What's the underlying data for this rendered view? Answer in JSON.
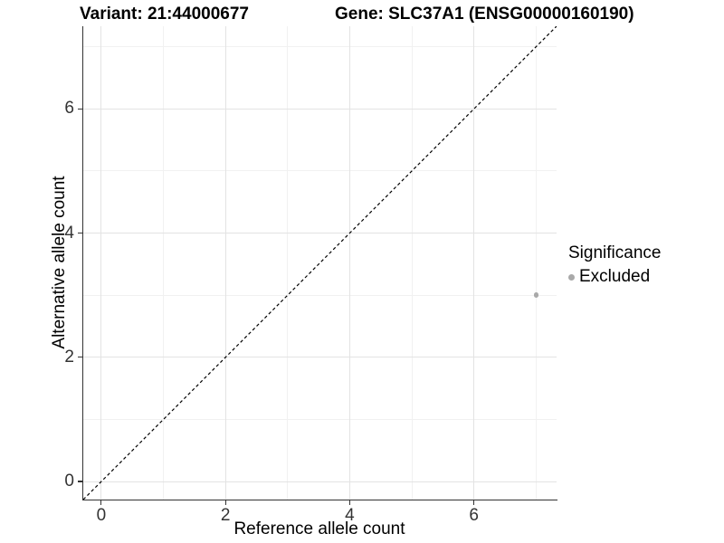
{
  "chart_data": {
    "type": "scatter",
    "title_left": "Variant: 21:44000677",
    "title_right": "Gene: SLC37A1 (ENSG00000160190)",
    "xlabel": "Reference allele count",
    "ylabel": "Alternative allele count",
    "xlim": [
      -0.29,
      7.33
    ],
    "ylim": [
      -0.29,
      7.33
    ],
    "x_major_ticks": [
      0,
      2,
      4,
      6
    ],
    "y_major_ticks": [
      0,
      2,
      4,
      6
    ],
    "x_minor_gridlines": [
      1,
      3,
      5,
      7
    ],
    "y_minor_gridlines": [
      1,
      3,
      5,
      7
    ],
    "grid": "major and minor, light gray on white",
    "identity_line": {
      "slope": 1,
      "intercept": 0,
      "style": "dashed",
      "color": "#000000"
    },
    "series": [
      {
        "name": "Excluded",
        "color": "#a9a9a9",
        "points": [
          {
            "x": 7,
            "y": 3
          }
        ]
      }
    ],
    "legend": {
      "position": "right",
      "title": "Significance",
      "entries": [
        {
          "label": "Excluded",
          "color": "#a9a9a9"
        }
      ]
    },
    "colors": {
      "grid_major": "#e3e3e3",
      "grid_minor": "#f1f1f1",
      "axis": "#333333",
      "tick_text": "#333333",
      "title_text": "#000000"
    }
  }
}
